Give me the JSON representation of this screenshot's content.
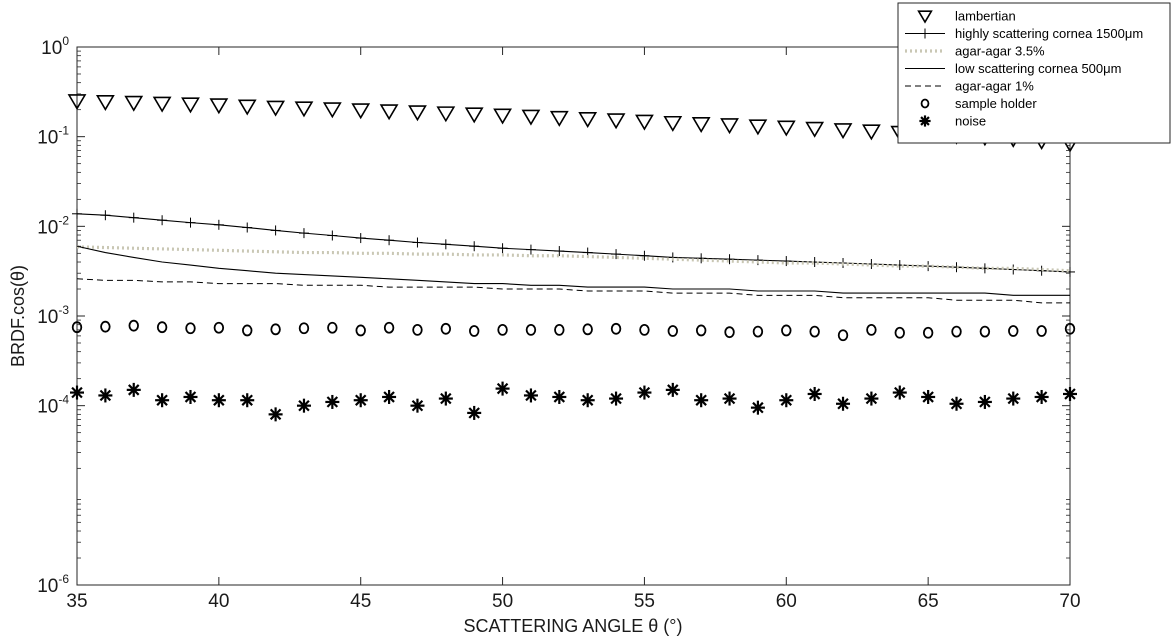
{
  "chart_data": {
    "type": "line",
    "title": "",
    "xlabel": "SCATTERING ANGLE  θ (°)",
    "ylabel": "BRDF.cos(θ)",
    "xlim": [
      35,
      70
    ],
    "ylim": [
      1e-06,
      1
    ],
    "yscale": "log",
    "grid": false,
    "legend_position": "top-right",
    "x_ticks": [
      35,
      40,
      45,
      50,
      55,
      60,
      65,
      70
    ],
    "x_tick_labels": [
      "35",
      "40",
      "45",
      "50",
      "55",
      "60",
      "65",
      "70"
    ],
    "y_ticks": [
      {
        "value": 1e-06,
        "base": "10",
        "exp": "-6"
      },
      {
        "value": 0.0001,
        "base": "10",
        "exp": "-4"
      },
      {
        "value": 0.001,
        "base": "10",
        "exp": "-3"
      },
      {
        "value": 0.01,
        "base": "10",
        "exp": "-2"
      },
      {
        "value": 0.1,
        "base": "10",
        "exp": "-1"
      },
      {
        "value": 1,
        "base": "10",
        "exp": "0"
      }
    ],
    "x": [
      35,
      36,
      37,
      38,
      39,
      40,
      41,
      42,
      43,
      44,
      45,
      46,
      47,
      48,
      49,
      50,
      51,
      52,
      53,
      54,
      55,
      56,
      57,
      58,
      59,
      60,
      61,
      62,
      63,
      64,
      65,
      66,
      67,
      68,
      69,
      70
    ],
    "series": [
      {
        "name": "lambertian",
        "style": "triangle-down",
        "color": "#000000",
        "values": [
          0.25,
          0.245,
          0.24,
          0.235,
          0.23,
          0.225,
          0.218,
          0.212,
          0.208,
          0.203,
          0.198,
          0.193,
          0.188,
          0.183,
          0.178,
          0.173,
          0.168,
          0.163,
          0.158,
          0.153,
          0.148,
          0.143,
          0.139,
          0.135,
          0.131,
          0.127,
          0.123,
          0.119,
          0.115,
          0.111,
          0.107,
          0.103,
          0.099,
          0.095,
          0.09,
          0.084
        ]
      },
      {
        "name": "highly scattering cornea 1500μm",
        "style": "line-plus",
        "color": "#000000",
        "values": [
          0.0138,
          0.0133,
          0.0125,
          0.0117,
          0.011,
          0.0104,
          0.0097,
          0.009,
          0.0084,
          0.0079,
          0.0074,
          0.007,
          0.0066,
          0.0063,
          0.006,
          0.0057,
          0.0055,
          0.0053,
          0.0051,
          0.0049,
          0.0047,
          0.0045,
          0.0044,
          0.0043,
          0.0042,
          0.0041,
          0.004,
          0.0039,
          0.0038,
          0.0037,
          0.0036,
          0.0035,
          0.0034,
          0.0033,
          0.0032,
          0.0031
        ]
      },
      {
        "name": "agar-agar 3.5%",
        "style": "dotted",
        "color": "#c9c7b4",
        "values": [
          0.0059,
          0.0058,
          0.0057,
          0.0056,
          0.0055,
          0.0054,
          0.0053,
          0.0052,
          0.0051,
          0.0051,
          0.005,
          0.005,
          0.0049,
          0.0049,
          0.0048,
          0.0048,
          0.0047,
          0.0047,
          0.0046,
          0.0045,
          0.0044,
          0.0043,
          0.0042,
          0.0041,
          0.004,
          0.0039,
          0.0039,
          0.0038,
          0.0037,
          0.0036,
          0.0036,
          0.0035,
          0.0034,
          0.0034,
          0.0033,
          0.0032
        ]
      },
      {
        "name": "low scattering cornea 500μm",
        "style": "solid",
        "color": "#000000",
        "values": [
          0.006,
          0.0051,
          0.0045,
          0.004,
          0.0037,
          0.0034,
          0.0032,
          0.003,
          0.0029,
          0.0028,
          0.0027,
          0.0026,
          0.0025,
          0.0024,
          0.0023,
          0.0023,
          0.0022,
          0.0022,
          0.0021,
          0.0021,
          0.0021,
          0.002,
          0.002,
          0.002,
          0.0019,
          0.0019,
          0.0019,
          0.0018,
          0.0018,
          0.0018,
          0.0018,
          0.0018,
          0.0018,
          0.0017,
          0.0017,
          0.0017
        ]
      },
      {
        "name": "agar-agar 1%",
        "style": "dashed",
        "color": "#000000",
        "values": [
          0.0026,
          0.0025,
          0.0025,
          0.0024,
          0.0024,
          0.0023,
          0.0023,
          0.0023,
          0.0022,
          0.0022,
          0.0022,
          0.0021,
          0.0021,
          0.0021,
          0.0021,
          0.002,
          0.002,
          0.002,
          0.0019,
          0.0019,
          0.0019,
          0.0018,
          0.0018,
          0.0018,
          0.0017,
          0.0017,
          0.0017,
          0.0016,
          0.0016,
          0.0016,
          0.0016,
          0.0015,
          0.0015,
          0.0015,
          0.0014,
          0.0014
        ]
      },
      {
        "name": "sample holder",
        "style": "circle",
        "color": "#000000",
        "values": [
          0.00075,
          0.00076,
          0.00078,
          0.00075,
          0.00073,
          0.00074,
          0.00069,
          0.00071,
          0.00073,
          0.00074,
          0.00069,
          0.00074,
          0.0007,
          0.00072,
          0.00068,
          0.0007,
          0.0007,
          0.0007,
          0.00071,
          0.00072,
          0.0007,
          0.00068,
          0.00069,
          0.00066,
          0.00067,
          0.00069,
          0.00067,
          0.00061,
          0.0007,
          0.00065,
          0.00065,
          0.00067,
          0.00067,
          0.00068,
          0.00068,
          0.00072
        ]
      },
      {
        "name": "noise",
        "style": "asterisk",
        "color": "#000000",
        "values": [
          0.00014,
          0.00013,
          0.00015,
          0.000115,
          0.000125,
          0.000115,
          0.000115,
          8e-05,
          0.0001,
          0.00011,
          0.000115,
          0.000125,
          0.0001,
          0.00012,
          8.3e-05,
          0.000155,
          0.00013,
          0.000125,
          0.000115,
          0.00012,
          0.00014,
          0.00015,
          0.000115,
          0.00012,
          9.5e-05,
          0.000115,
          0.000135,
          0.000105,
          0.00012,
          0.00014,
          0.000125,
          0.000105,
          0.00011,
          0.00012,
          0.000125,
          0.000135
        ]
      }
    ]
  }
}
